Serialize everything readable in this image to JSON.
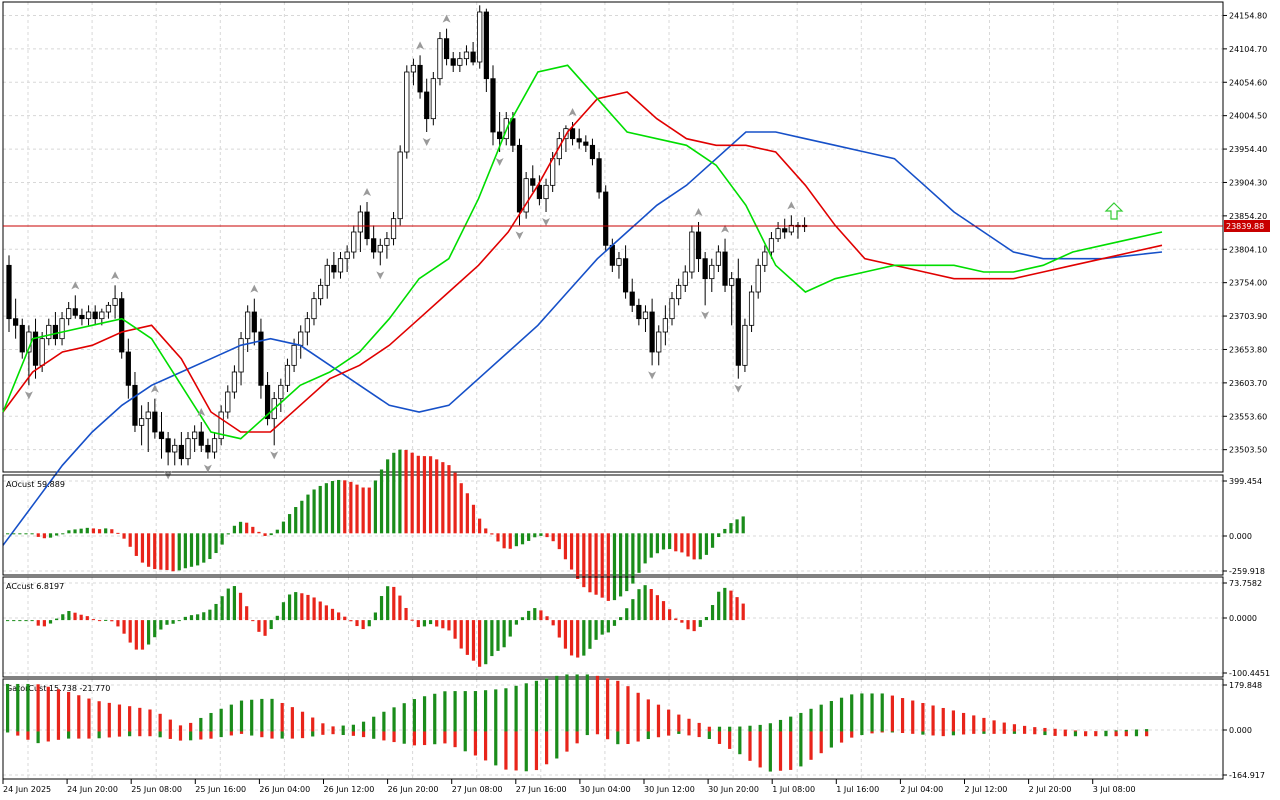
{
  "colors": {
    "background": "#ffffff",
    "grid": "#d8d8d8",
    "bull_candle": "#ffffff",
    "bear_candle": "#000000",
    "jaw": "#1650c8",
    "teeth": "#e00000",
    "lips": "#00dd00",
    "histogram_up": "#1a8c1a",
    "histogram_down": "#e8241a",
    "price_line": "#c80000",
    "fractal": "#9a9a9a",
    "signal_arrow": "#33cc33"
  },
  "main_panel": {
    "price_axis_labels": [
      "24154.80",
      "24104.70",
      "24054.60",
      "24004.50",
      "23954.40",
      "23904.30",
      "23854.20",
      "23804.10",
      "23754.00",
      "23703.90",
      "23653.80",
      "23603.70",
      "23553.60",
      "23503.50"
    ],
    "current_price": "23839.88",
    "signal_icon": "up-arrow-icon"
  },
  "ao_panel": {
    "title": "AOcust 59.889",
    "axis_labels": [
      "399.454",
      "0.000",
      "-259.918"
    ]
  },
  "ac_panel": {
    "title": "ACcust 6.8197",
    "axis_labels": [
      "73.7582",
      "0.0000",
      "-100.4451"
    ]
  },
  "gator_panel": {
    "title": "GatorCust 15.738 -21.770",
    "axis_labels": [
      "179.848",
      "0.000",
      "-164.917"
    ]
  },
  "time_axis": {
    "labels": [
      "24 Jun 2025",
      "24 Jun 20:00",
      "25 Jun 08:00",
      "25 Jun 16:00",
      "26 Jun 04:00",
      "26 Jun 12:00",
      "26 Jun 20:00",
      "27 Jun 08:00",
      "27 Jun 16:00",
      "30 Jun 04:00",
      "30 Jun 12:00",
      "30 Jun 20:00",
      "1 Jul 08:00",
      "1 Jul 16:00",
      "2 Jul 04:00",
      "2 Jul 12:00",
      "2 Jul 20:00",
      "3 Jul 08:00"
    ]
  },
  "chart_data": {
    "type": "candlestick",
    "symbol_note": "Bill Williams Alligator with AO, AC and Gator oscillators",
    "price_range": [
      23470,
      24175
    ],
    "candles_ohlc": [
      [
        23780,
        23795,
        23680,
        23700
      ],
      [
        23700,
        23730,
        23670,
        23690
      ],
      [
        23690,
        23700,
        23640,
        23650
      ],
      [
        23650,
        23690,
        23600,
        23680
      ],
      [
        23680,
        23700,
        23610,
        23630
      ],
      [
        23630,
        23680,
        23620,
        23670
      ],
      [
        23670,
        23700,
        23660,
        23690
      ],
      [
        23690,
        23710,
        23660,
        23670
      ],
      [
        23670,
        23710,
        23660,
        23700
      ],
      [
        23700,
        23725,
        23690,
        23715
      ],
      [
        23715,
        23735,
        23700,
        23705
      ],
      [
        23705,
        23715,
        23690,
        23700
      ],
      [
        23700,
        23720,
        23690,
        23710
      ],
      [
        23710,
        23720,
        23690,
        23700
      ],
      [
        23700,
        23715,
        23690,
        23710
      ],
      [
        23710,
        23725,
        23700,
        23720
      ],
      [
        23720,
        23750,
        23700,
        23730
      ],
      [
        23730,
        23740,
        23640,
        23650
      ],
      [
        23650,
        23670,
        23580,
        23600
      ],
      [
        23600,
        23620,
        23530,
        23540
      ],
      [
        23540,
        23570,
        23510,
        23550
      ],
      [
        23550,
        23575,
        23500,
        23560
      ],
      [
        23560,
        23580,
        23520,
        23530
      ],
      [
        23530,
        23560,
        23490,
        23520
      ],
      [
        23520,
        23530,
        23480,
        23500
      ],
      [
        23500,
        23520,
        23480,
        23510
      ],
      [
        23510,
        23530,
        23480,
        23490
      ],
      [
        23490,
        23530,
        23480,
        23520
      ],
      [
        23520,
        23540,
        23500,
        23530
      ],
      [
        23530,
        23545,
        23500,
        23510
      ],
      [
        23510,
        23520,
        23490,
        23500
      ],
      [
        23500,
        23530,
        23490,
        23520
      ],
      [
        23520,
        23570,
        23510,
        23560
      ],
      [
        23560,
        23600,
        23550,
        23590
      ],
      [
        23590,
        23630,
        23580,
        23620
      ],
      [
        23620,
        23680,
        23600,
        23670
      ],
      [
        23670,
        23720,
        23650,
        23710
      ],
      [
        23710,
        23730,
        23660,
        23680
      ],
      [
        23680,
        23700,
        23580,
        23600
      ],
      [
        23600,
        23620,
        23540,
        23550
      ],
      [
        23550,
        23590,
        23510,
        23580
      ],
      [
        23580,
        23610,
        23560,
        23600
      ],
      [
        23600,
        23640,
        23590,
        23630
      ],
      [
        23630,
        23670,
        23620,
        23660
      ],
      [
        23660,
        23690,
        23640,
        23680
      ],
      [
        23680,
        23710,
        23660,
        23700
      ],
      [
        23700,
        23740,
        23690,
        23730
      ],
      [
        23730,
        23760,
        23720,
        23750
      ],
      [
        23750,
        23790,
        23730,
        23780
      ],
      [
        23780,
        23800,
        23760,
        23770
      ],
      [
        23770,
        23800,
        23760,
        23790
      ],
      [
        23790,
        23810,
        23770,
        23800
      ],
      [
        23800,
        23840,
        23790,
        23830
      ],
      [
        23830,
        23870,
        23800,
        23860
      ],
      [
        23860,
        23875,
        23810,
        23820
      ],
      [
        23820,
        23840,
        23790,
        23800
      ],
      [
        23800,
        23820,
        23780,
        23810
      ],
      [
        23810,
        23830,
        23790,
        23820
      ],
      [
        23820,
        23860,
        23810,
        23850
      ],
      [
        23850,
        23960,
        23840,
        23950
      ],
      [
        23950,
        24080,
        23940,
        24070
      ],
      [
        24070,
        24090,
        24050,
        24080
      ],
      [
        24080,
        24095,
        24030,
        24040
      ],
      [
        24040,
        24060,
        23980,
        24000
      ],
      [
        24000,
        24070,
        23990,
        24060
      ],
      [
        24060,
        24130,
        24050,
        24120
      ],
      [
        24120,
        24135,
        24080,
        24090
      ],
      [
        24090,
        24100,
        24070,
        24080
      ],
      [
        24080,
        24100,
        24070,
        24090
      ],
      [
        24090,
        24110,
        24080,
        24100
      ],
      [
        24100,
        24115,
        24080,
        24085
      ],
      [
        24085,
        24170,
        24075,
        24160
      ],
      [
        24160,
        24165,
        24040,
        24060
      ],
      [
        24060,
        24080,
        23960,
        23980
      ],
      [
        23980,
        24010,
        23950,
        23970
      ],
      [
        23970,
        24010,
        23960,
        24000
      ],
      [
        24000,
        24010,
        23950,
        23960
      ],
      [
        23960,
        23970,
        23840,
        23860
      ],
      [
        23860,
        23920,
        23850,
        23910
      ],
      [
        23910,
        23930,
        23890,
        23900
      ],
      [
        23900,
        23915,
        23870,
        23880
      ],
      [
        23880,
        23910,
        23860,
        23900
      ],
      [
        23900,
        23950,
        23890,
        23940
      ],
      [
        23940,
        23980,
        23930,
        23970
      ],
      [
        23970,
        23990,
        23950,
        23985
      ],
      [
        23985,
        23995,
        23960,
        23970
      ],
      [
        23970,
        23985,
        23955,
        23965
      ],
      [
        23965,
        23975,
        23950,
        23960
      ],
      [
        23960,
        23970,
        23930,
        23940
      ],
      [
        23940,
        23950,
        23880,
        23890
      ],
      [
        23890,
        23900,
        23800,
        23810
      ],
      [
        23810,
        23820,
        23770,
        23780
      ],
      [
        23780,
        23800,
        23760,
        23790
      ],
      [
        23790,
        23810,
        23730,
        23740
      ],
      [
        23740,
        23760,
        23710,
        23720
      ],
      [
        23720,
        23730,
        23690,
        23700
      ],
      [
        23700,
        23720,
        23680,
        23710
      ],
      [
        23710,
        23730,
        23630,
        23650
      ],
      [
        23650,
        23690,
        23630,
        23680
      ],
      [
        23680,
        23720,
        23660,
        23700
      ],
      [
        23700,
        23740,
        23690,
        23730
      ],
      [
        23730,
        23760,
        23720,
        23750
      ],
      [
        23750,
        23780,
        23740,
        23770
      ],
      [
        23770,
        23840,
        23760,
        23830
      ],
      [
        23830,
        23845,
        23770,
        23790
      ],
      [
        23790,
        23800,
        23720,
        23760
      ],
      [
        23760,
        23790,
        23740,
        23780
      ],
      [
        23780,
        23810,
        23770,
        23800
      ],
      [
        23800,
        23820,
        23740,
        23750
      ],
      [
        23750,
        23770,
        23690,
        23760
      ],
      [
        23760,
        23790,
        23610,
        23630
      ],
      [
        23630,
        23700,
        23620,
        23690
      ],
      [
        23690,
        23750,
        23680,
        23740
      ],
      [
        23740,
        23790,
        23730,
        23780
      ],
      [
        23780,
        23810,
        23770,
        23800
      ],
      [
        23800,
        23830,
        23790,
        23820
      ],
      [
        23820,
        23845,
        23815,
        23835
      ],
      [
        23835,
        23850,
        23820,
        23830
      ],
      [
        23830,
        23855,
        23825,
        23840
      ],
      [
        23840,
        23845,
        23820,
        23838
      ],
      [
        23838,
        23852,
        23830,
        23840
      ]
    ],
    "alligator": {
      "jaw_blue": [
        23360,
        23420,
        23480,
        23530,
        23570,
        23600,
        23620,
        23640,
        23660,
        23670,
        23660,
        23630,
        23600,
        23570,
        23560,
        23570,
        23610,
        23650,
        23690,
        23740,
        23790,
        23830,
        23870,
        23900,
        23940,
        23980,
        23980,
        23970,
        23960,
        23950,
        23940,
        23900,
        23860,
        23830,
        23800,
        23790,
        23790,
        23790,
        23795,
        23800
      ],
      "teeth_red": [
        23560,
        23620,
        23650,
        23660,
        23680,
        23690,
        23640,
        23560,
        23530,
        23530,
        23570,
        23610,
        23630,
        23660,
        23700,
        23740,
        23780,
        23830,
        23900,
        23980,
        24030,
        24040,
        24000,
        23970,
        23960,
        23960,
        23950,
        23900,
        23840,
        23790,
        23780,
        23770,
        23760,
        23760,
        23760,
        23770,
        23780,
        23790,
        23800,
        23810
      ],
      "lips_green": [
        23560,
        23670,
        23680,
        23690,
        23700,
        23670,
        23600,
        23530,
        23520,
        23560,
        23600,
        23620,
        23650,
        23700,
        23760,
        23790,
        23880,
        23990,
        24070,
        24080,
        24030,
        23980,
        23970,
        23960,
        23930,
        23870,
        23780,
        23740,
        23760,
        23770,
        23780,
        23780,
        23780,
        23770,
        23770,
        23780,
        23800,
        23810,
        23820,
        23830
      ]
    }
  }
}
